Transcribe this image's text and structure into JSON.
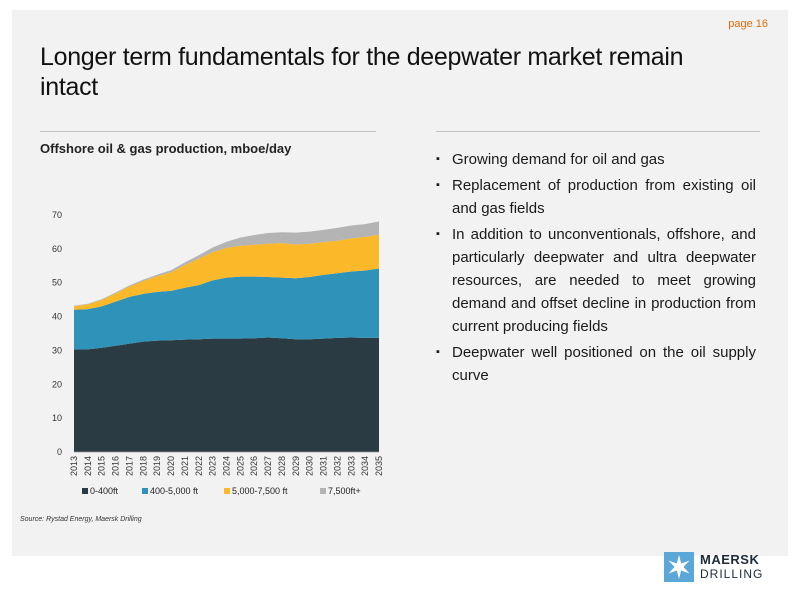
{
  "page": {
    "number_label": "page 16"
  },
  "slide": {
    "title": "Longer term fundamentals for the deepwater market remain intact",
    "source": "Source: Rystad Energy, Maersk Drilling"
  },
  "bullets": [
    "Growing demand for oil and gas",
    "Replacement of production from existing oil and gas fields",
    "In addition to unconventionals, offshore, and particularly deepwater and ultra deepwater resources, are needed to meet growing demand and offset decline in production from current producing fields",
    "Deepwater well positioned on the oil supply curve"
  ],
  "logo": {
    "name": "MAERSK",
    "sub": "DRILLING"
  },
  "chart_data": {
    "type": "area",
    "stacked": true,
    "title": "Offshore oil & gas production, mboe/day",
    "xlabel": "",
    "ylabel": "",
    "ylim": [
      0,
      70
    ],
    "yticks": [
      0,
      10,
      20,
      30,
      40,
      50,
      60,
      70
    ],
    "grid": false,
    "legend_position": "bottom",
    "x": [
      "2013",
      "2014",
      "2015",
      "2016",
      "2017",
      "2018",
      "2019",
      "2020",
      "2021",
      "2022",
      "2023",
      "2024",
      "2025",
      "2026",
      "2027",
      "2028",
      "2029",
      "2030",
      "2031",
      "2032",
      "2033",
      "2034",
      "2035"
    ],
    "series": [
      {
        "name": "0-400ft",
        "color": "#2b3b44",
        "values": [
          30.3,
          30.3,
          30.8,
          31.4,
          32.0,
          32.6,
          32.9,
          33.0,
          33.2,
          33.3,
          33.5,
          33.5,
          33.5,
          33.6,
          33.8,
          33.6,
          33.3,
          33.3,
          33.5,
          33.7,
          33.8,
          33.7,
          33.7
        ]
      },
      {
        "name": "400-5,000 ft",
        "color": "#2f93b9",
        "values": [
          11.7,
          11.9,
          12.2,
          13.0,
          13.8,
          14.1,
          14.4,
          14.6,
          15.3,
          16.0,
          17.2,
          18.0,
          18.3,
          18.2,
          17.9,
          17.9,
          18.0,
          18.4,
          18.8,
          19.1,
          19.5,
          19.9,
          20.5
        ]
      },
      {
        "name": "5,000-7,500 ft",
        "color": "#fbb829",
        "values": [
          1.0,
          1.4,
          1.9,
          2.4,
          3.1,
          3.8,
          4.6,
          5.5,
          6.7,
          7.8,
          8.3,
          8.8,
          9.1,
          9.4,
          9.8,
          10.2,
          10.0,
          9.8,
          9.7,
          9.6,
          9.8,
          9.9,
          10.0
        ]
      },
      {
        "name": "7,500ft+",
        "color": "#b4b4b4",
        "values": [
          0.2,
          0.2,
          0.2,
          0.3,
          0.3,
          0.4,
          0.5,
          0.6,
          0.8,
          1.0,
          1.4,
          1.8,
          2.4,
          2.9,
          3.2,
          3.2,
          3.5,
          3.6,
          3.6,
          3.8,
          3.8,
          3.8,
          3.9
        ]
      }
    ]
  }
}
